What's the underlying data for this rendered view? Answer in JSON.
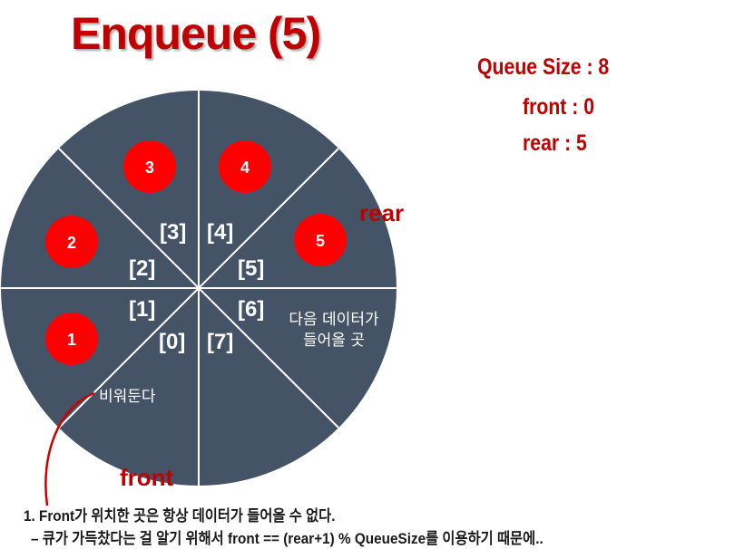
{
  "title": "Enqueue (5)",
  "info": {
    "queue_size": "Queue Size : 8",
    "front": "front : 0",
    "rear": "rear : 5"
  },
  "colors": {
    "sector_fill": "#445366",
    "divider": "#ffffff",
    "node_fill": "#ff0000",
    "accent_text": "#c00000"
  },
  "queue": {
    "index_labels": [
      "[0]",
      "[1]",
      "[2]",
      "[3]",
      "[4]",
      "[5]",
      "[6]",
      "[7]"
    ],
    "nodes": [
      "1",
      "2",
      "3",
      "4",
      "5"
    ],
    "rear_label": "rear",
    "front_label": "front",
    "empty_label": "비워둔다",
    "next_label_line1": "다음 데이터가",
    "next_label_line2": "들어올 곳"
  },
  "notes": {
    "line1": "1. Front가 위치한 곳은 항상 데이터가 들어올 수 없다.",
    "line2": "– 큐가 가득찼다는 걸 알기 위해서 front == (rear+1) % QueueSize를 이용하기 때문에.."
  }
}
